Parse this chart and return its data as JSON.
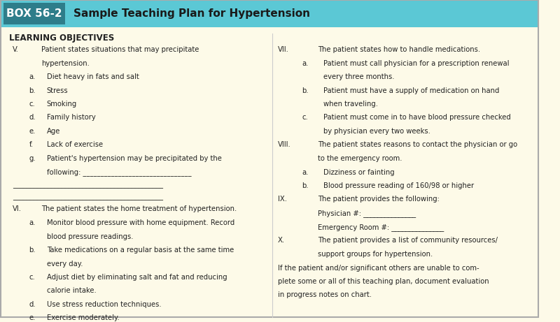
{
  "title_box_color": "#5bc8d5",
  "title_box_label": "BOX 56-2",
  "title_text": "Sample Teaching Plan for Hypertension",
  "background_color": "#fdfae8",
  "header_color": "#5bc8d5",
  "text_color": "#222222",
  "section_header": "LEARNING OBJECTIVES",
  "left_col": [
    {
      "indent": 0,
      "label": "V.",
      "text": "Patient states situations that may precipitate\nhypertension."
    },
    {
      "indent": 1,
      "label": "a.",
      "text": "Diet heavy in fats and salt"
    },
    {
      "indent": 1,
      "label": "b.",
      "text": "Stress"
    },
    {
      "indent": 1,
      "label": "c.",
      "text": "Smoking"
    },
    {
      "indent": 1,
      "label": "d.",
      "text": "Family history"
    },
    {
      "indent": 1,
      "label": "e.",
      "text": "Age"
    },
    {
      "indent": 1,
      "label": "f.",
      "text": "Lack of exercise"
    },
    {
      "indent": 1,
      "label": "g.",
      "text": "Patient's hypertension may be precipitated by the\nfollowing: _______________________________"
    },
    {
      "indent": 0,
      "label": "",
      "text": "___________________________________________"
    },
    {
      "indent": 0,
      "label": "",
      "text": "___________________________________________"
    },
    {
      "indent": 0,
      "label": "VI.",
      "text": "The patient states the home treatment of hypertension."
    },
    {
      "indent": 1,
      "label": "a.",
      "text": "Monitor blood pressure with home equipment. Record\nblood pressure readings."
    },
    {
      "indent": 1,
      "label": "b.",
      "text": "Take medications on a regular basis at the same time\nevery day."
    },
    {
      "indent": 1,
      "label": "c.",
      "text": "Adjust diet by eliminating salt and fat and reducing\ncalorie intake."
    },
    {
      "indent": 1,
      "label": "d.",
      "text": "Use stress reduction techniques."
    },
    {
      "indent": 1,
      "label": "e.",
      "text": "Exercise moderately."
    }
  ],
  "right_col": [
    {
      "indent": 0,
      "label": "VII.",
      "text": "The patient states how to handle medications."
    },
    {
      "indent": 1,
      "label": "a.",
      "text": "Patient must call physician for a prescription renewal\nevery three months."
    },
    {
      "indent": 1,
      "label": "b.",
      "text": "Patient must have a supply of medication on hand\nwhen traveling."
    },
    {
      "indent": 1,
      "label": "c.",
      "text": "Patient must come in to have blood pressure checked\nby physician every two weeks."
    },
    {
      "indent": 0,
      "label": "VIII.",
      "text": "The patient states reasons to contact the physician or go\nto the emergency room."
    },
    {
      "indent": 1,
      "label": "a.",
      "text": "Dizziness or fainting"
    },
    {
      "indent": 1,
      "label": "b.",
      "text": "Blood pressure reading of 160/98 or higher"
    },
    {
      "indent": 0,
      "label": "IX.",
      "text": "The patient provides the following:\nPhysician #: _______________\nEmergency Room #: _______________"
    },
    {
      "indent": 0,
      "label": "X.",
      "text": "The patient provides a list of community resources/\nsupport groups for hypertension."
    },
    {
      "indent": 0,
      "label": "",
      "text": "If the patient and/or significant others are unable to com-\nplete some or all of this teaching plan, document evaluation\nin progress notes on chart."
    }
  ],
  "figsize": [
    8.0,
    4.61
  ],
  "dpi": 100
}
